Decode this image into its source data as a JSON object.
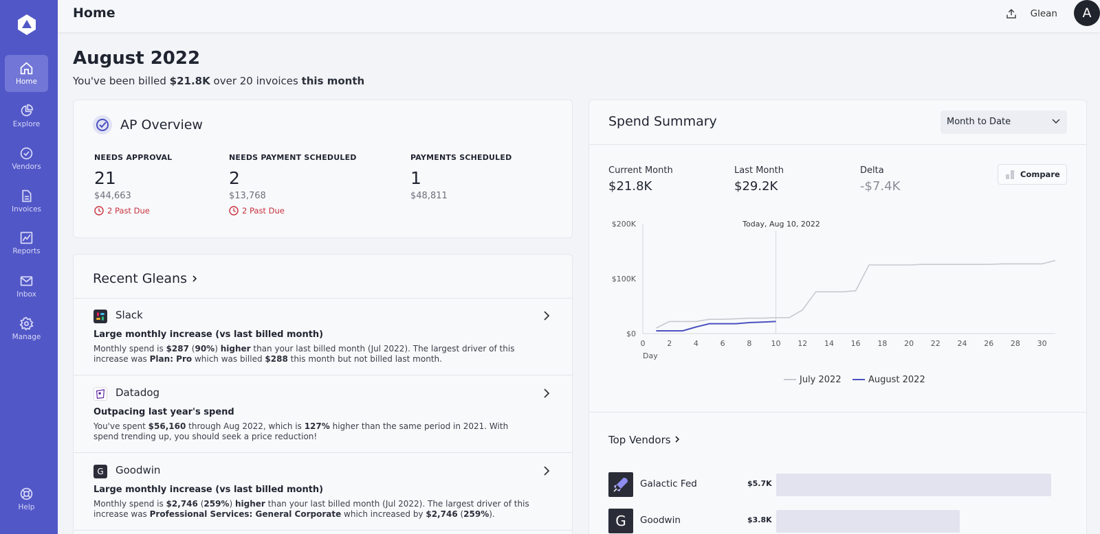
{
  "sidebar": {
    "items": [
      {
        "label": "Home",
        "icon": "home-icon"
      },
      {
        "label": "Explore",
        "icon": "pie-chart-icon"
      },
      {
        "label": "Vendors",
        "icon": "check-circle-icon"
      },
      {
        "label": "Invoices",
        "icon": "document-icon"
      },
      {
        "label": "Reports",
        "icon": "line-chart-icon"
      },
      {
        "label": "Inbox",
        "icon": "mail-icon"
      },
      {
        "label": "Manage",
        "icon": "gear-icon"
      }
    ],
    "help_label": "Help",
    "active_color": "#7276d6",
    "background_color": "#5257c7"
  },
  "header": {
    "title": "Home",
    "org_name": "Glean",
    "avatar_initial": "A"
  },
  "summary": {
    "month_title": "August 2022",
    "billed_prefix": "You've been billed",
    "billed_amount": "$21.8K",
    "billed_middle": "over 20 invoices",
    "billed_period": "this month"
  },
  "ap_overview": {
    "title": "AP Overview",
    "stats": [
      {
        "label": "NEEDS APPROVAL",
        "count": "21",
        "amount": "$44,663",
        "past_due": "2 Past Due"
      },
      {
        "label": "NEEDS PAYMENT SCHEDULED",
        "count": "2",
        "amount": "$13,768",
        "past_due": "2 Past Due"
      },
      {
        "label": "PAYMENTS SCHEDULED",
        "count": "1",
        "amount": "$48,811"
      }
    ]
  },
  "recent_gleans": {
    "title": "Recent Gleans",
    "items": [
      {
        "name": "Slack",
        "heading": "Large monthly increase (vs last billed month)",
        "parts": [
          {
            "t": "Monthly spend is "
          },
          {
            "t": "$287",
            "b": true
          },
          {
            "t": " ("
          },
          {
            "t": "90%",
            "b": true
          },
          {
            "t": ") "
          },
          {
            "t": "higher",
            "b": true
          },
          {
            "t": " than your last billed month (Jul 2022). The largest driver of this increase was "
          },
          {
            "t": "Plan: Pro",
            "b": true
          },
          {
            "t": " which was billed "
          },
          {
            "t": "$288",
            "b": true
          },
          {
            "t": " this month but not billed last month."
          }
        ]
      },
      {
        "name": "Datadog",
        "heading": "Outpacing last year's spend",
        "parts": [
          {
            "t": "You've spent "
          },
          {
            "t": "$56,160",
            "b": true
          },
          {
            "t": " through Aug 2022, which is "
          },
          {
            "t": "127%",
            "b": true
          },
          {
            "t": " higher than the same period in 2021. With spend trending up, you should seek a price reduction!"
          }
        ]
      },
      {
        "name": "Goodwin",
        "logo_letter": "G",
        "heading": "Large monthly increase (vs last billed month)",
        "parts": [
          {
            "t": "Monthly spend is "
          },
          {
            "t": "$2,746",
            "b": true
          },
          {
            "t": " ("
          },
          {
            "t": "259%",
            "b": true
          },
          {
            "t": ") "
          },
          {
            "t": "higher",
            "b": true
          },
          {
            "t": " than your last billed month (Jul 2022). The largest driver of this increase was "
          },
          {
            "t": "Professional Services: General Corporate",
            "b": true
          },
          {
            "t": " which increased by "
          },
          {
            "t": "$2,746",
            "b": true
          },
          {
            "t": " ("
          },
          {
            "t": "259%",
            "b": true
          },
          {
            "t": ")."
          }
        ]
      }
    ]
  },
  "spend_summary": {
    "title": "Spend Summary",
    "period_selected": "Month to Date",
    "metrics": [
      {
        "label": "Current Month",
        "value": "$21.8K"
      },
      {
        "label": "Last Month",
        "value": "$29.2K"
      },
      {
        "label": "Delta",
        "value": "-$7.4K"
      }
    ],
    "compare_label": "Compare"
  },
  "chart_data": {
    "type": "line",
    "xlabel": "Day",
    "ylabel": "",
    "xlim": [
      0,
      31
    ],
    "ylim": [
      0,
      200000
    ],
    "x_ticks": [
      0,
      2,
      4,
      6,
      8,
      10,
      12,
      14,
      16,
      18,
      20,
      22,
      24,
      26,
      28,
      30
    ],
    "y_ticks": [
      {
        "value": 0,
        "label": "$0"
      },
      {
        "value": 100000,
        "label": "$100K"
      },
      {
        "value": 200000,
        "label": "$200K"
      }
    ],
    "annotation": {
      "x": 10,
      "label": "Today, Aug 10, 2022"
    },
    "grid": false,
    "legend_position": "bottom",
    "series": [
      {
        "name": "July 2022",
        "color": "#c8c9cf",
        "x": [
          1,
          2,
          3,
          4,
          5,
          6,
          7,
          8,
          9,
          10,
          11,
          12,
          13,
          14,
          15,
          16,
          17,
          18,
          19,
          20,
          21,
          22,
          23,
          24,
          25,
          26,
          27,
          28,
          29,
          30,
          31
        ],
        "y": [
          10000,
          22000,
          22000,
          22000,
          26000,
          26000,
          27000,
          28000,
          28000,
          29000,
          29000,
          43000,
          76000,
          76000,
          76000,
          78000,
          125000,
          125000,
          125000,
          125000,
          126000,
          126000,
          126000,
          126000,
          126000,
          126000,
          127000,
          127000,
          127000,
          127000,
          133000
        ]
      },
      {
        "name": "August 2022",
        "color": "#4a50c0",
        "x": [
          1,
          2,
          3,
          4,
          5,
          6,
          7,
          8,
          9,
          10
        ],
        "y": [
          5000,
          5000,
          5000,
          12000,
          18000,
          18000,
          18000,
          20000,
          21000,
          22000
        ]
      }
    ]
  },
  "top_vendors": {
    "title": "Top Vendors",
    "items": [
      {
        "name": "Galactic Fed",
        "amount": "$5.7K",
        "value": 5700,
        "logo": "rocket-icon"
      },
      {
        "name": "Goodwin",
        "amount": "$3.8K",
        "value": 3800,
        "logo_letter": "G"
      }
    ]
  }
}
